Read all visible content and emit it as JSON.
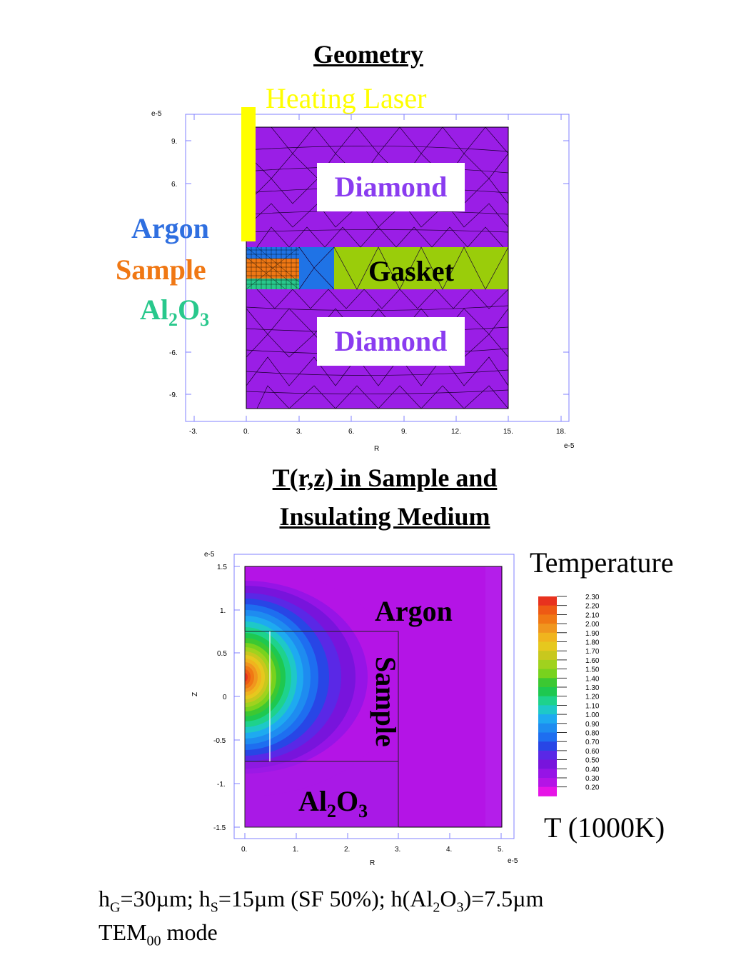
{
  "geometry": {
    "title": "Geometry",
    "laser_label": "Heating Laser",
    "labels": {
      "argon": "Argon",
      "sample": "Sample",
      "al": "Al",
      "al_sub1": "2",
      "o": "O",
      "o_sub": "3",
      "diamond_top": "Diamond",
      "diamond_bottom": "Diamond",
      "gasket": "Gasket"
    },
    "axes": {
      "x_exp": "e-5",
      "y_exp": "e-5",
      "x_label": "R",
      "x_ticks": [
        "-3.",
        "0.",
        "3.",
        "6.",
        "9.",
        "12.",
        "15.",
        "18."
      ],
      "y_ticks": [
        "9.",
        "6.",
        "-6.",
        "-9."
      ]
    },
    "colors": {
      "diamond": "#9a1ee6",
      "gasket": "#9acd0a",
      "argon": "#1f73e6",
      "sample": "#f07814",
      "al2o3": "#28c88c",
      "laser": "#ffff00"
    }
  },
  "temperature": {
    "title_line1": "T(r,z) in Sample and ",
    "title_line2": "Insulating Medium",
    "legend_title": "Temperature",
    "unit_label": "T (1000K)",
    "labels": {
      "argon": "Argon",
      "sample": "Sample",
      "al": "Al",
      "al_sub": "2",
      "o": "O",
      "o_sub": "3"
    },
    "axes": {
      "x_label": "R",
      "y_label": "Z",
      "x_exp": "e-5",
      "y_exp": "e-5",
      "x_ticks": [
        "0.",
        "1.",
        "2.",
        "3.",
        "4.",
        "5."
      ],
      "y_ticks": [
        "1.5",
        "1.",
        "0.5",
        "0",
        "-0.5",
        "-1.",
        "-1.5"
      ]
    },
    "legend_levels": [
      "2.30",
      "2.20",
      "2.10",
      "2.00",
      "1.90",
      "1.80",
      "1.70",
      "1.60",
      "1.50",
      "1.40",
      "1.30",
      "1.20",
      "1.10",
      "1.00",
      "0.90",
      "0.80",
      "0.70",
      "0.60",
      "0.50",
      "0.40",
      "0.30",
      "0.20"
    ],
    "legend_colors": [
      "#e8321e",
      "#ee5a14",
      "#f07814",
      "#f0961e",
      "#f0b41e",
      "#e6c81e",
      "#c8c81e",
      "#a0d21e",
      "#78d21e",
      "#3cc832",
      "#1ec850",
      "#1ed28c",
      "#1ec8c8",
      "#1eaaf0",
      "#1e8cf0",
      "#1e6ef0",
      "#2846e6",
      "#5a28e6",
      "#7814dc",
      "#9614e6",
      "#b414e6",
      "#e614e6"
    ]
  },
  "footer": {
    "line1": {
      "h1": "h",
      "h1_sub": "G",
      "t1": "=30µm; h",
      "h2_sub": "S",
      "t2": "=15µm (SF 50%); h(Al",
      "sub_a": "2",
      "t3": "O",
      "sub_b": "3",
      "t4": ")=7.5µm"
    },
    "line2": {
      "t1": "TEM",
      "sub": "00",
      "t2": " mode"
    }
  }
}
